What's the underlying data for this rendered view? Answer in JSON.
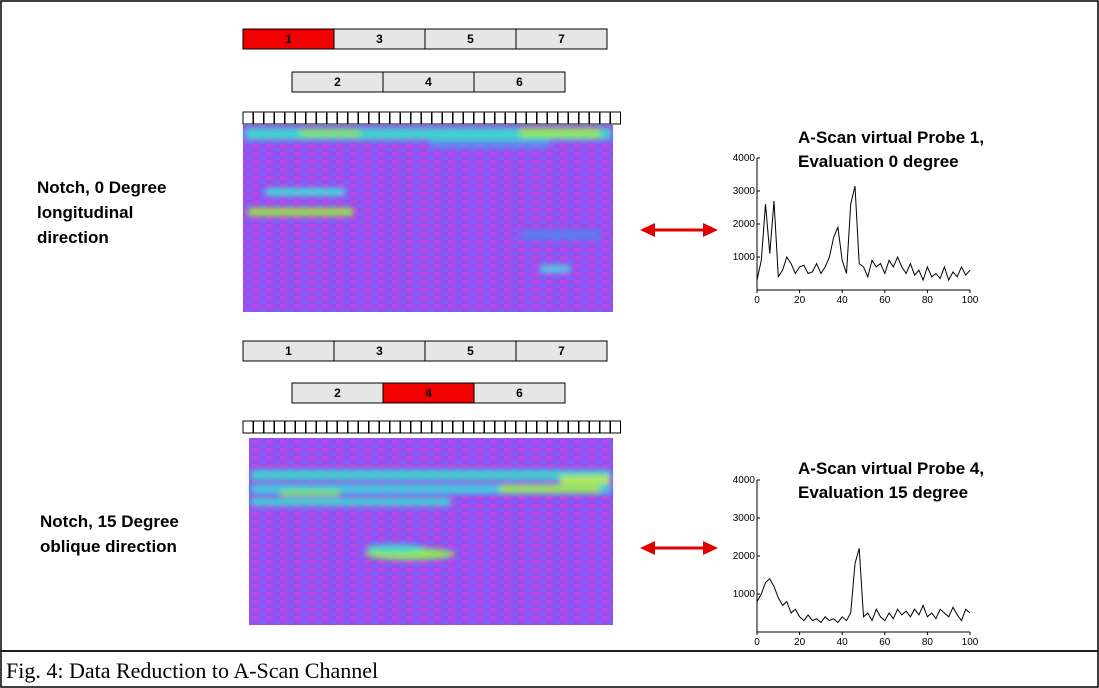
{
  "panels": [
    {
      "notch_label": [
        "Notch, 0 Degree",
        "longitudinal",
        "direction"
      ],
      "probe_rows": [
        [
          "1",
          "3",
          "5",
          "7"
        ],
        [
          "2",
          "4",
          "6"
        ]
      ],
      "active_probe": "1"
    },
    {
      "notch_label": [
        "Notch, 15 Degree",
        "oblique direction"
      ],
      "probe_rows": [
        [
          "1",
          "3",
          "5",
          "7"
        ],
        [
          "2",
          "4",
          "6"
        ]
      ],
      "active_probe": "4"
    }
  ],
  "caption": "Fig. 4: Data Reduction to A-Scan Channel",
  "chart_data": [
    {
      "type": "line",
      "title": [
        "A-Scan virtual Probe 1,",
        "Evaluation 0 degree"
      ],
      "x": [
        0,
        2,
        4,
        6,
        8,
        10,
        12,
        14,
        16,
        18,
        20,
        22,
        24,
        26,
        28,
        30,
        32,
        34,
        36,
        38,
        40,
        42,
        44,
        46,
        48,
        50,
        52,
        54,
        56,
        58,
        60,
        62,
        64,
        66,
        68,
        70,
        72,
        74,
        76,
        78,
        80,
        82,
        84,
        86,
        88,
        90,
        92,
        94,
        96,
        98,
        100
      ],
      "series": [
        {
          "color": "#000000",
          "values": [
            300,
            900,
            2600,
            1100,
            2700,
            400,
            600,
            1000,
            800,
            500,
            700,
            750,
            500,
            550,
            800,
            500,
            700,
            1000,
            1600,
            1900,
            900,
            500,
            2600,
            3150,
            800,
            700,
            400,
            900,
            700,
            800,
            500,
            900,
            700,
            1000,
            700,
            500,
            800,
            450,
            600,
            300,
            700,
            400,
            500,
            350,
            700,
            300,
            550,
            400,
            700,
            450,
            600
          ]
        }
      ],
      "xlim": [
        0,
        100
      ],
      "ylim": [
        0,
        4000
      ],
      "xticks": [
        0,
        20,
        40,
        60,
        80,
        100
      ],
      "yticks": [
        1000,
        2000,
        3000,
        4000
      ]
    },
    {
      "type": "line",
      "title": [
        "A-Scan virtual Probe 4,",
        "Evaluation 15 degree"
      ],
      "x": [
        0,
        2,
        4,
        6,
        8,
        10,
        12,
        14,
        16,
        18,
        20,
        22,
        24,
        26,
        28,
        30,
        32,
        34,
        36,
        38,
        40,
        42,
        44,
        46,
        48,
        50,
        52,
        54,
        56,
        58,
        60,
        62,
        64,
        66,
        68,
        70,
        72,
        74,
        76,
        78,
        80,
        82,
        84,
        86,
        88,
        90,
        92,
        94,
        96,
        98,
        100
      ],
      "series": [
        {
          "color": "#000000",
          "values": [
            800,
            1000,
            1300,
            1400,
            1200,
            900,
            700,
            800,
            500,
            600,
            400,
            300,
            450,
            300,
            350,
            250,
            400,
            300,
            350,
            250,
            400,
            300,
            500,
            1800,
            2200,
            400,
            500,
            300,
            600,
            400,
            300,
            500,
            350,
            600,
            450,
            550,
            400,
            600,
            450,
            700,
            400,
            500,
            350,
            600,
            500,
            400,
            650,
            450,
            300,
            600,
            500
          ]
        }
      ],
      "xlim": [
        0,
        100
      ],
      "ylim": [
        0,
        4000
      ],
      "xticks": [
        0,
        20,
        40,
        60,
        80,
        100
      ],
      "yticks": [
        1000,
        2000,
        3000,
        4000
      ]
    }
  ]
}
